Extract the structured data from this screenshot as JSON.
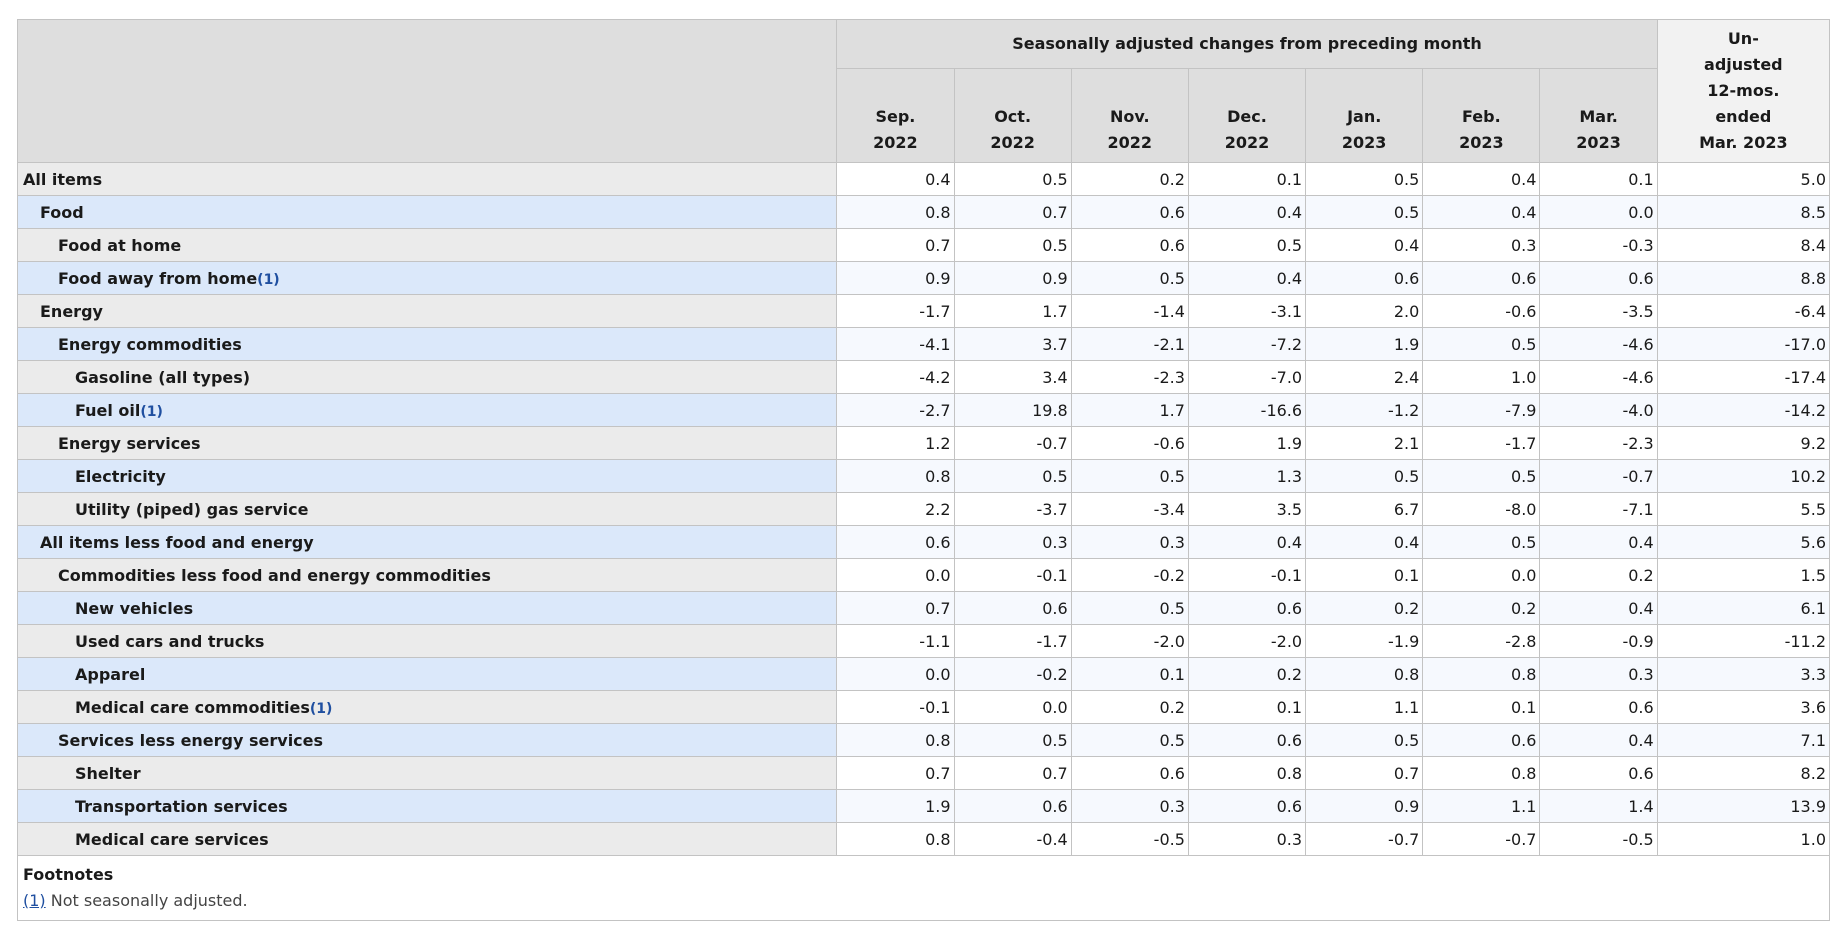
{
  "table": {
    "group_header": "Seasonally adjusted changes from preceding month",
    "months": [
      {
        "line1": "Sep.",
        "line2": "2022"
      },
      {
        "line1": "Oct.",
        "line2": "2022"
      },
      {
        "line1": "Nov.",
        "line2": "2022"
      },
      {
        "line1": "Dec.",
        "line2": "2022"
      },
      {
        "line1": "Jan.",
        "line2": "2023"
      },
      {
        "line1": "Feb.",
        "line2": "2023"
      },
      {
        "line1": "Mar.",
        "line2": "2023"
      }
    ],
    "unadjusted_header": [
      "Un-",
      "adjusted",
      "12-mos.",
      "ended",
      "Mar. 2023"
    ],
    "rows": [
      {
        "label": "All items",
        "level": 0,
        "footnote": "",
        "values": [
          "0.4",
          "0.5",
          "0.2",
          "0.1",
          "0.5",
          "0.4",
          "0.1"
        ],
        "unadjusted": "5.0"
      },
      {
        "label": "Food",
        "level": 1,
        "footnote": "",
        "values": [
          "0.8",
          "0.7",
          "0.6",
          "0.4",
          "0.5",
          "0.4",
          "0.0"
        ],
        "unadjusted": "8.5"
      },
      {
        "label": "Food at home",
        "level": 2,
        "footnote": "",
        "values": [
          "0.7",
          "0.5",
          "0.6",
          "0.5",
          "0.4",
          "0.3",
          "-0.3"
        ],
        "unadjusted": "8.4"
      },
      {
        "label": "Food away from home",
        "level": 2,
        "footnote": "(1)",
        "values": [
          "0.9",
          "0.9",
          "0.5",
          "0.4",
          "0.6",
          "0.6",
          "0.6"
        ],
        "unadjusted": "8.8"
      },
      {
        "label": "Energy",
        "level": 1,
        "footnote": "",
        "values": [
          "-1.7",
          "1.7",
          "-1.4",
          "-3.1",
          "2.0",
          "-0.6",
          "-3.5"
        ],
        "unadjusted": "-6.4"
      },
      {
        "label": "Energy commodities",
        "level": 2,
        "footnote": "",
        "values": [
          "-4.1",
          "3.7",
          "-2.1",
          "-7.2",
          "1.9",
          "0.5",
          "-4.6"
        ],
        "unadjusted": "-17.0"
      },
      {
        "label": "Gasoline (all types)",
        "level": 3,
        "footnote": "",
        "values": [
          "-4.2",
          "3.4",
          "-2.3",
          "-7.0",
          "2.4",
          "1.0",
          "-4.6"
        ],
        "unadjusted": "-17.4"
      },
      {
        "label": "Fuel oil",
        "level": 3,
        "footnote": "(1)",
        "values": [
          "-2.7",
          "19.8",
          "1.7",
          "-16.6",
          "-1.2",
          "-7.9",
          "-4.0"
        ],
        "unadjusted": "-14.2"
      },
      {
        "label": "Energy services",
        "level": 2,
        "footnote": "",
        "values": [
          "1.2",
          "-0.7",
          "-0.6",
          "1.9",
          "2.1",
          "-1.7",
          "-2.3"
        ],
        "unadjusted": "9.2"
      },
      {
        "label": "Electricity",
        "level": 3,
        "footnote": "",
        "values": [
          "0.8",
          "0.5",
          "0.5",
          "1.3",
          "0.5",
          "0.5",
          "-0.7"
        ],
        "unadjusted": "10.2"
      },
      {
        "label": "Utility (piped) gas service",
        "level": 3,
        "footnote": "",
        "values": [
          "2.2",
          "-3.7",
          "-3.4",
          "3.5",
          "6.7",
          "-8.0",
          "-7.1"
        ],
        "unadjusted": "5.5"
      },
      {
        "label": "All items less food and energy",
        "level": 1,
        "footnote": "",
        "values": [
          "0.6",
          "0.3",
          "0.3",
          "0.4",
          "0.4",
          "0.5",
          "0.4"
        ],
        "unadjusted": "5.6"
      },
      {
        "label": "Commodities less food and energy commodities",
        "level": 2,
        "footnote": "",
        "values": [
          "0.0",
          "-0.1",
          "-0.2",
          "-0.1",
          "0.1",
          "0.0",
          "0.2"
        ],
        "unadjusted": "1.5"
      },
      {
        "label": "New vehicles",
        "level": 3,
        "footnote": "",
        "values": [
          "0.7",
          "0.6",
          "0.5",
          "0.6",
          "0.2",
          "0.2",
          "0.4"
        ],
        "unadjusted": "6.1"
      },
      {
        "label": "Used cars and trucks",
        "level": 3,
        "footnote": "",
        "values": [
          "-1.1",
          "-1.7",
          "-2.0",
          "-2.0",
          "-1.9",
          "-2.8",
          "-0.9"
        ],
        "unadjusted": "-11.2"
      },
      {
        "label": "Apparel",
        "level": 3,
        "footnote": "",
        "values": [
          "0.0",
          "-0.2",
          "0.1",
          "0.2",
          "0.8",
          "0.8",
          "0.3"
        ],
        "unadjusted": "3.3"
      },
      {
        "label": "Medical care commodities",
        "level": 3,
        "footnote": "(1)",
        "values": [
          "-0.1",
          "0.0",
          "0.2",
          "0.1",
          "1.1",
          "0.1",
          "0.6"
        ],
        "unadjusted": "3.6"
      },
      {
        "label": "Services less energy services",
        "level": 2,
        "footnote": "",
        "values": [
          "0.8",
          "0.5",
          "0.5",
          "0.6",
          "0.5",
          "0.6",
          "0.4"
        ],
        "unadjusted": "7.1"
      },
      {
        "label": "Shelter",
        "level": 3,
        "footnote": "",
        "values": [
          "0.7",
          "0.7",
          "0.6",
          "0.8",
          "0.7",
          "0.8",
          "0.6"
        ],
        "unadjusted": "8.2"
      },
      {
        "label": "Transportation services",
        "level": 3,
        "footnote": "",
        "values": [
          "1.9",
          "0.6",
          "0.3",
          "0.6",
          "0.9",
          "1.1",
          "1.4"
        ],
        "unadjusted": "13.9"
      },
      {
        "label": "Medical care services",
        "level": 3,
        "footnote": "",
        "values": [
          "0.8",
          "-0.4",
          "-0.5",
          "0.3",
          "-0.7",
          "-0.7",
          "-0.5"
        ],
        "unadjusted": "1.0"
      }
    ]
  },
  "footnotes": {
    "title": "Footnotes",
    "items": [
      {
        "marker": "(1)",
        "text": " Not seasonally adjusted."
      }
    ]
  },
  "colors": {
    "header_bg": "#dedede",
    "row_label_odd": "#ebebeb",
    "row_label_even": "#dbe8fa",
    "link": "#1f4fa0"
  }
}
